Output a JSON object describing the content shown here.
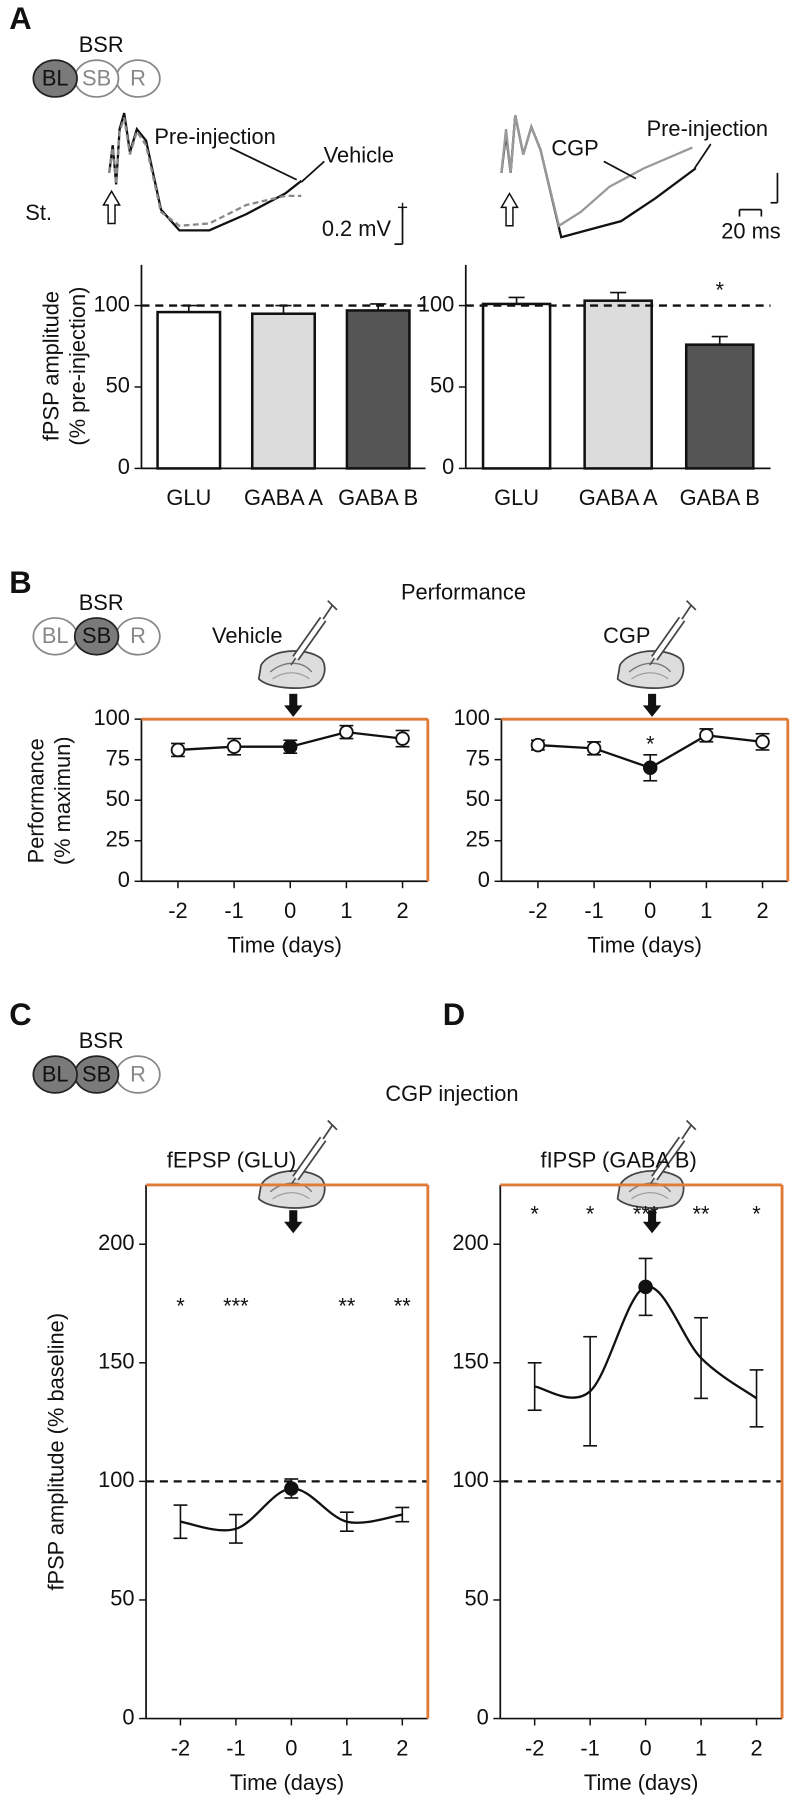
{
  "figure": {
    "panel_letters": [
      "A",
      "B",
      "C",
      "D"
    ],
    "bsr_label": "BSR",
    "bsr_regions": [
      "BL",
      "SB",
      "R"
    ],
    "trace_labels": {
      "pre_injection": "Pre-injection",
      "vehicle": "Vehicle",
      "stimulus": "St.",
      "amplitude_scale": "0.2 mV",
      "cgp": "CGP",
      "pre_injection_2": "Pre-injection",
      "time_scale": "20 ms"
    },
    "performance_title": "Performance",
    "vehicle_injection": "Vehicle",
    "cgp_injection": "CGP",
    "cgp_injection_title": "CGP injection",
    "baseline_ylabel": "fPSP amplitude (% baseline)"
  },
  "chart_data": [
    {
      "type": "bar",
      "ylabel": "fPSP amplitude (% pre-injection)",
      "categories": [
        "GLU",
        "GABA A",
        "GABA B"
      ],
      "values": [
        96,
        95,
        97
      ],
      "errors": [
        4,
        5,
        4
      ],
      "colors": [
        "#ffffff",
        "#dcdcdc",
        "#555555"
      ],
      "ylim": [
        0,
        125
      ],
      "yticks": [
        0,
        50,
        100
      ],
      "reference_line": 100
    },
    {
      "type": "bar",
      "categories": [
        "GLU",
        "GABA A",
        "GABA B"
      ],
      "values": [
        101,
        103,
        76
      ],
      "errors": [
        4,
        5,
        5
      ],
      "colors": [
        "#ffffff",
        "#dcdcdc",
        "#555555"
      ],
      "ylim": [
        0,
        125
      ],
      "yticks": [
        0,
        50,
        100
      ],
      "reference_line": 100,
      "annotations": [
        {
          "x": "GABA B",
          "text": "*"
        }
      ]
    },
    {
      "type": "line",
      "ylabel": "Performance (% maximun)",
      "xlabel": "Time (days)",
      "x": [
        -2,
        -1,
        0,
        1,
        2
      ],
      "values": [
        81,
        83,
        83,
        92,
        88
      ],
      "errors": [
        4,
        5,
        4,
        4,
        5
      ],
      "marker_colors": [
        "#ffffff",
        "#ffffff",
        "#111111",
        "#ffffff",
        "#ffffff"
      ],
      "xlim": [
        -2.65,
        2.45
      ],
      "xticks": [
        -2,
        -1,
        0,
        1,
        2
      ],
      "ylim": [
        0,
        100
      ],
      "yticks": [
        0,
        25,
        50,
        75,
        100
      ],
      "frame_color": "#e07b39"
    },
    {
      "type": "line",
      "xlabel": "Time (days)",
      "x": [
        -2,
        -1,
        0,
        1,
        2
      ],
      "values": [
        84,
        82,
        70,
        90,
        86
      ],
      "errors": [
        3,
        4,
        8,
        4,
        5
      ],
      "marker_colors": [
        "#ffffff",
        "#ffffff",
        "#111111",
        "#ffffff",
        "#ffffff"
      ],
      "xlim": [
        -2.65,
        2.45
      ],
      "xticks": [
        -2,
        -1,
        0,
        1,
        2
      ],
      "ylim": [
        0,
        100
      ],
      "yticks": [
        0,
        25,
        50,
        75,
        100
      ],
      "frame_color": "#e07b39",
      "annotations": [
        {
          "x": 0,
          "text": "*"
        }
      ]
    },
    {
      "type": "line",
      "subtitle": "fEPSP (GLU)",
      "xlabel": "Time (days)",
      "smooth": true,
      "x": [
        -2,
        -1,
        0,
        1,
        2
      ],
      "values": [
        83,
        80,
        97,
        83,
        86
      ],
      "errors": [
        7,
        6,
        4,
        4,
        3
      ],
      "marker_colors": [
        null,
        null,
        "#111111",
        null,
        null
      ],
      "xlim": [
        -2.62,
        2.46
      ],
      "xticks": [
        -2,
        -1,
        0,
        1,
        2
      ],
      "ylim": [
        0,
        225
      ],
      "yticks": [
        0,
        50,
        100,
        150,
        200
      ],
      "reference_line": 100,
      "frame_color": "#e07b39",
      "annotations": [
        {
          "x": -2,
          "text": "*"
        },
        {
          "x": -1,
          "text": "***"
        },
        {
          "x": 1,
          "text": "**"
        },
        {
          "x": 2,
          "text": "**"
        }
      ]
    },
    {
      "type": "line",
      "subtitle": "fIPSP (GABA B)",
      "xlabel": "Time (days)",
      "smooth": true,
      "x": [
        -2,
        -1,
        0,
        1,
        2
      ],
      "values": [
        140,
        138,
        182,
        152,
        135
      ],
      "errors": [
        10,
        23,
        12,
        17,
        12
      ],
      "marker_colors": [
        null,
        null,
        "#111111",
        null,
        null
      ],
      "xlim": [
        -2.62,
        2.46
      ],
      "xticks": [
        -2,
        -1,
        0,
        1,
        2
      ],
      "ylim": [
        0,
        225
      ],
      "yticks": [
        0,
        50,
        100,
        150,
        200
      ],
      "reference_line": 100,
      "frame_color": "#e07b39",
      "annotations": [
        {
          "x": -2,
          "text": "*"
        },
        {
          "x": -1,
          "text": "*"
        },
        {
          "x": 0,
          "text": "***"
        },
        {
          "x": 1,
          "text": "**"
        },
        {
          "x": 2,
          "text": "*"
        }
      ]
    }
  ]
}
